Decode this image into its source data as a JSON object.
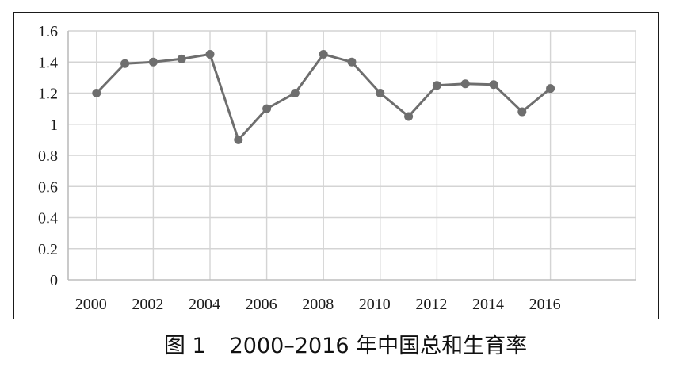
{
  "caption": {
    "label": "图 1",
    "text": "2000–2016 年中国总和生育率"
  },
  "colors": {
    "line": "#6e6e6e",
    "marker": "#6e6e6e",
    "grid": "#d4d4d4",
    "axis": "#bdbdbd",
    "text": "#1a1a1a",
    "frame": "#1a1a1a"
  },
  "chart_data": {
    "type": "line",
    "title": "",
    "xlabel": "",
    "ylabel": "",
    "x": [
      2000,
      2001,
      2002,
      2003,
      2004,
      2005,
      2006,
      2007,
      2008,
      2009,
      2010,
      2011,
      2012,
      2013,
      2014,
      2015,
      2016
    ],
    "series": [
      {
        "values": [
          1.2,
          1.39,
          1.4,
          1.42,
          1.45,
          0.9,
          1.1,
          1.2,
          1.45,
          1.4,
          1.2,
          1.05,
          1.25,
          1.26,
          1.255,
          1.08,
          1.23
        ]
      }
    ],
    "xlim": [
      1999,
      2019
    ],
    "ylim": [
      0,
      1.6
    ],
    "x_tick_labels": [
      "2000",
      "2002",
      "2004",
      "2006",
      "2008",
      "2010",
      "2012",
      "2014",
      "2016"
    ],
    "y_tick_labels": [
      "0",
      "0.2",
      "0.4",
      "0.6",
      "0.8",
      "1",
      "1.2",
      "1.4",
      "1.6"
    ],
    "grid": true,
    "legend": "none"
  }
}
